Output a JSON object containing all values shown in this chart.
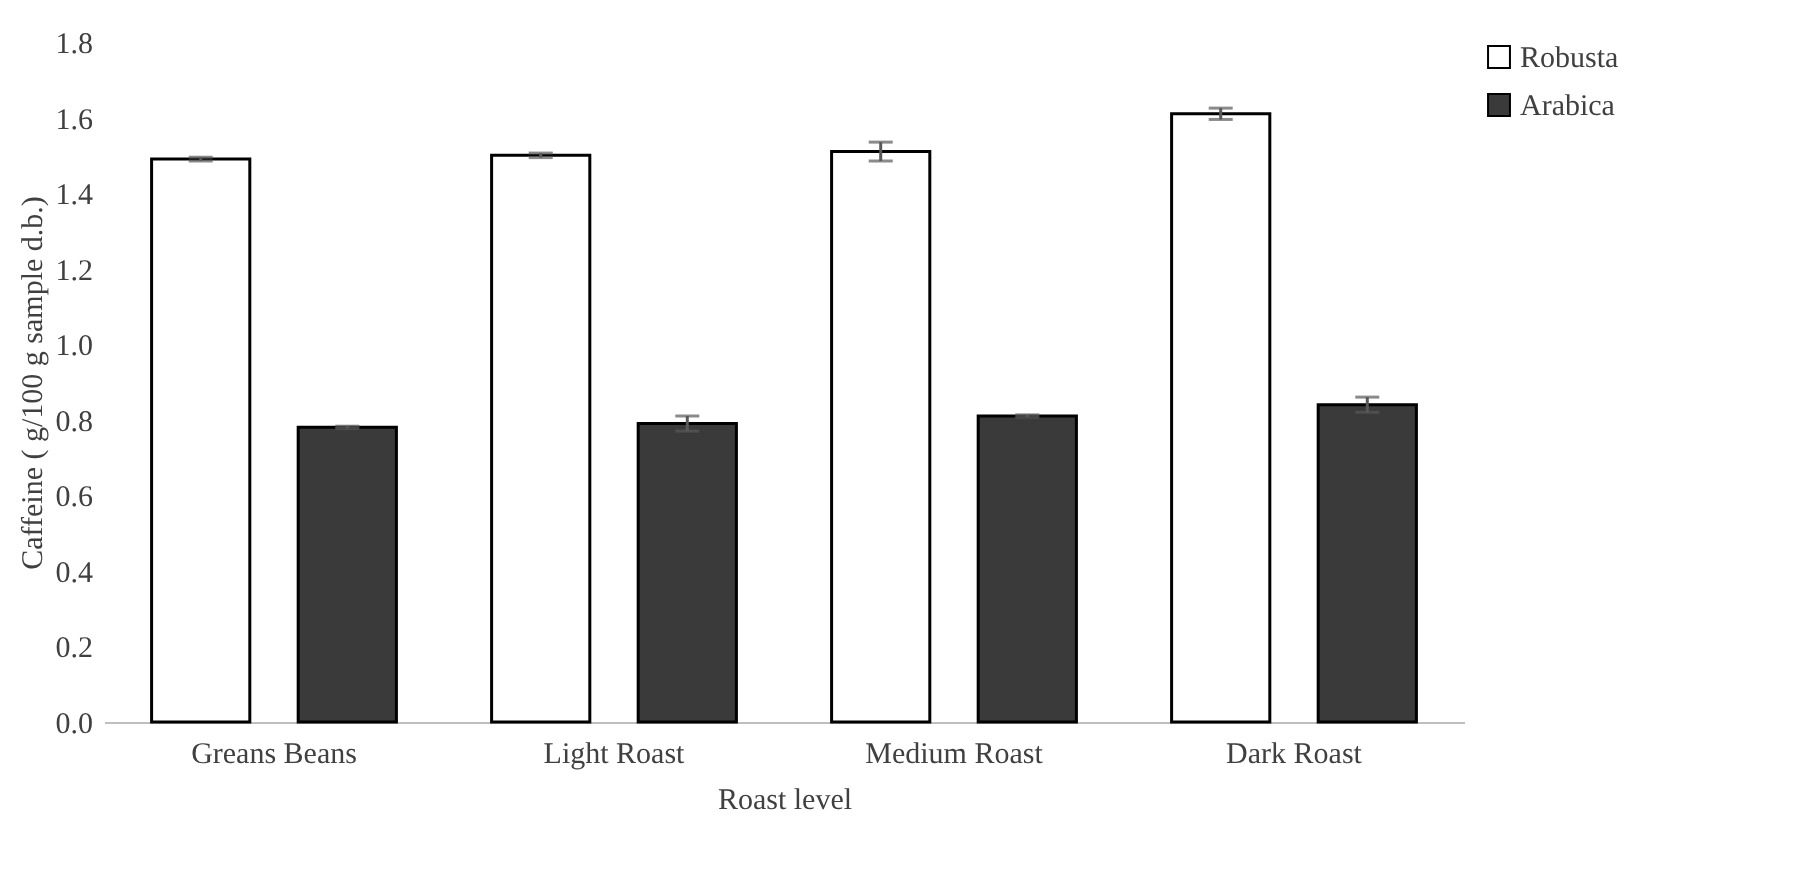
{
  "chart_data": {
    "type": "bar",
    "xlabel": "Roast level",
    "ylabel": "Caffeine ( g/100 g sample d.b.)",
    "categories": [
      "Greans Beans",
      "Light Roast",
      "Medium Roast",
      "Dark Roast"
    ],
    "series": [
      {
        "name": "Robusta",
        "color": "#ffffff",
        "values": [
          1.49,
          1.5,
          1.51,
          1.61
        ],
        "errors": [
          0.005,
          0.006,
          0.025,
          0.015
        ]
      },
      {
        "name": "Arabica",
        "color": "#3a3a3a",
        "values": [
          0.78,
          0.79,
          0.81,
          0.84
        ],
        "errors": [
          0.003,
          0.02,
          0.003,
          0.02
        ]
      }
    ],
    "ylim": [
      0,
      1.8
    ],
    "yticks": [
      {
        "value": 0,
        "label": "0.0"
      },
      {
        "value": 0.2,
        "label": "0.2"
      },
      {
        "value": 0.4,
        "label": "0.4"
      },
      {
        "value": 0.6,
        "label": "0.6"
      },
      {
        "value": 0.8,
        "label": "0.8"
      },
      {
        "value": 1,
        "label": "1.0"
      },
      {
        "value": 1.2,
        "label": "1.2"
      },
      {
        "value": 1.4,
        "label": "1.4"
      },
      {
        "value": 1.6,
        "label": "1.6"
      },
      {
        "value": 1.8,
        "label": "1.8"
      }
    ],
    "grid": false,
    "legend": "right"
  }
}
